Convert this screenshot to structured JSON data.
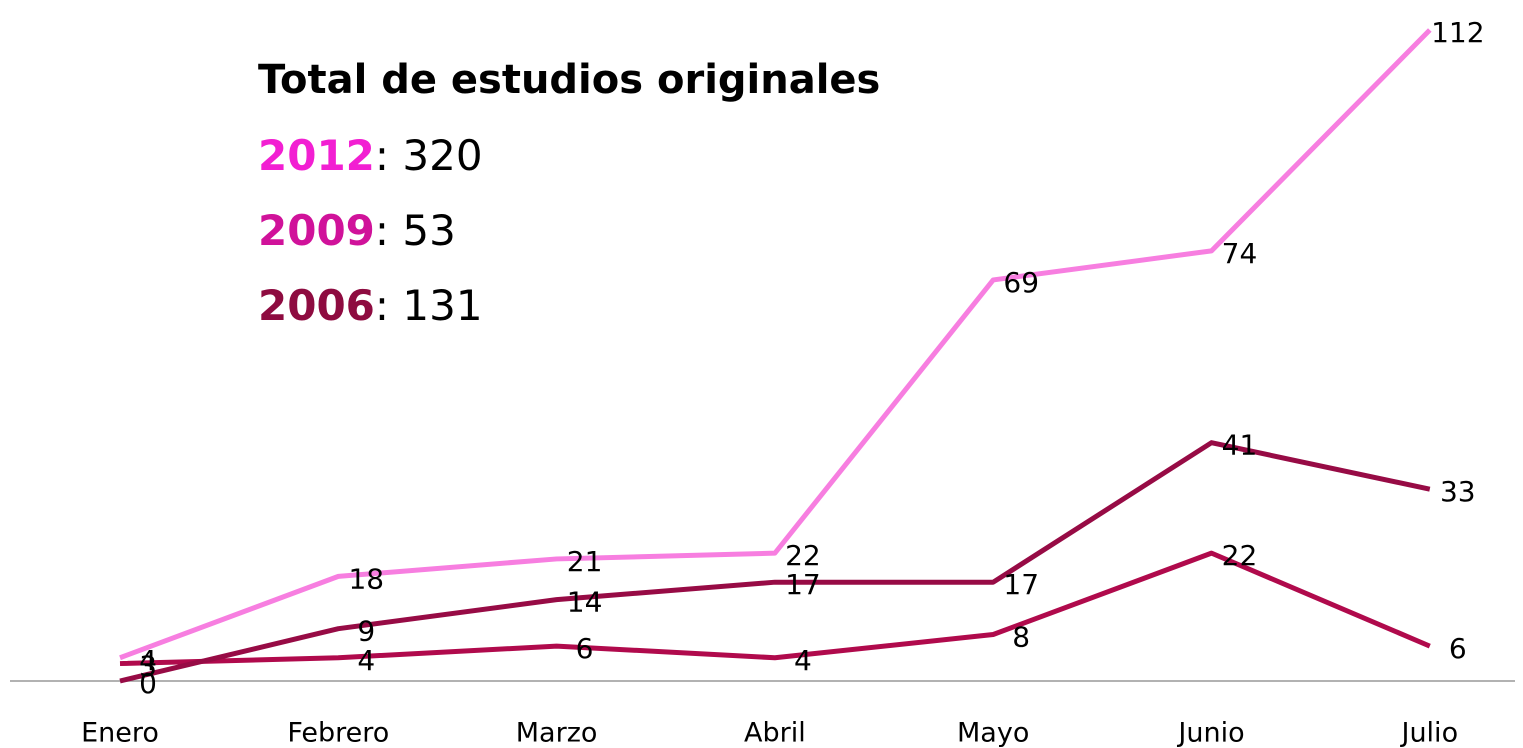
{
  "chart_data": {
    "type": "line",
    "title": "Total de estudios originales",
    "annotations": [
      {
        "label": "2012",
        "value": 320,
        "color": "#f21fd2"
      },
      {
        "label": "2009",
        "value": 53,
        "color": "#d0129a"
      },
      {
        "label": "2006",
        "value": 131,
        "color": "#8e0b40"
      }
    ],
    "categories": [
      "Enero",
      "Febrero",
      "Marzo",
      "Abril",
      "Mayo",
      "Junio",
      "Julio"
    ],
    "series": [
      {
        "name": "2012",
        "color": "#f77ee0",
        "values": [
          4,
          18,
          21,
          22,
          69,
          74,
          112
        ]
      },
      {
        "name": "2009",
        "color": "#b00a4c",
        "values": [
          3,
          4,
          6,
          4,
          8,
          22,
          6
        ]
      },
      {
        "name": "2006",
        "color": "#970b45",
        "values": [
          0,
          9,
          14,
          17,
          17,
          41,
          33
        ]
      }
    ],
    "ylim": [
      0,
      112
    ],
    "grid": false
  }
}
